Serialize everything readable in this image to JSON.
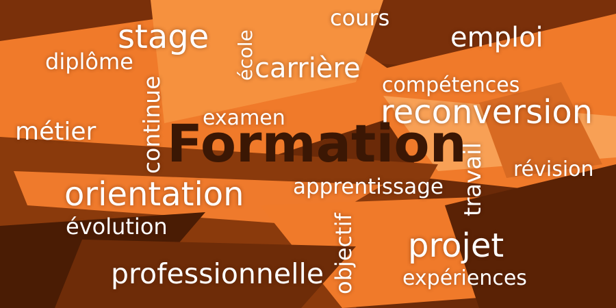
{
  "colors": {
    "deep_brown": "#5a2205",
    "mid_brown": "#8a3a0c",
    "orange": "#f07a2a",
    "light_orange": "#f6913e",
    "headline": "#3b1704",
    "word": "#ffffff"
  },
  "words": {
    "headline": "Formation",
    "cours": "cours",
    "stage": "stage",
    "emploi": "emploi",
    "diplome": "diplôme",
    "ecole": "école",
    "carriere": "carrière",
    "competences": "compétences",
    "continue": "continue",
    "examen": "examen",
    "reconversion": "reconversion",
    "metier": "métier",
    "travail": "travail",
    "revision": "révision",
    "apprentissage": "apprentissage",
    "orientation": "orientation",
    "evolution": "évolution",
    "objectif": "objectif",
    "projet": "projet",
    "professionnelle": "professionnelle",
    "experiences": "expériences"
  }
}
